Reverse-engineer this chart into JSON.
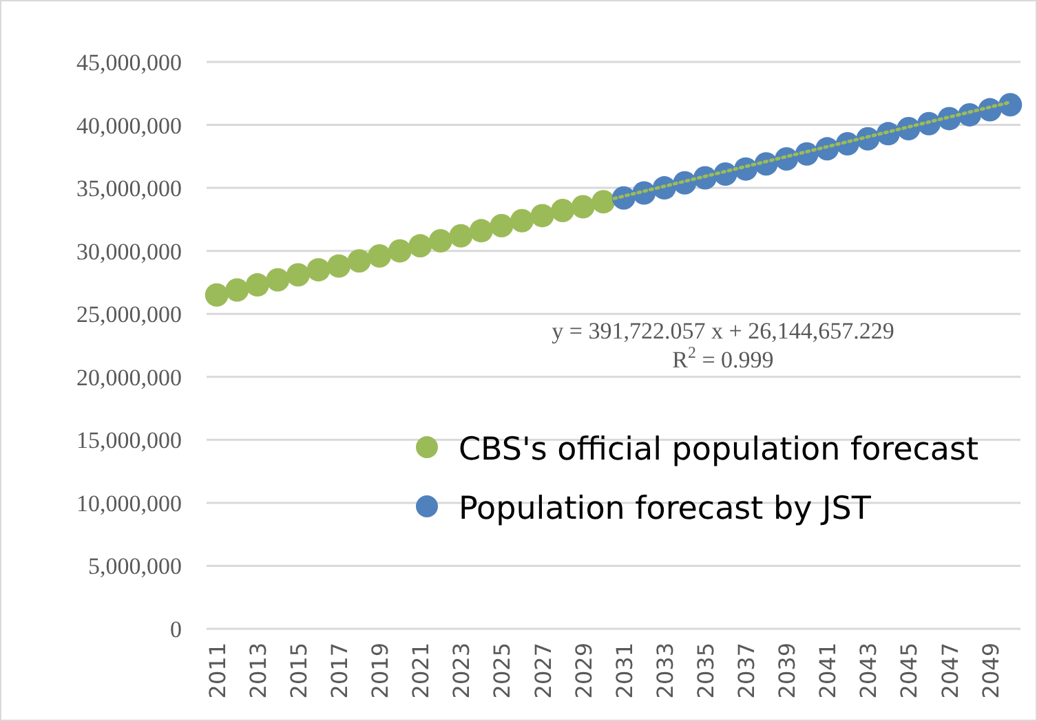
{
  "chart_data": {
    "type": "scatter",
    "categories": [
      "2011",
      null,
      "2013",
      null,
      "2015",
      null,
      "2017",
      null,
      "2019",
      null,
      "2021",
      null,
      "2023",
      null,
      "2025",
      null,
      "2027",
      null,
      "2029",
      null,
      "2031",
      null,
      "2033",
      null,
      "2035",
      null,
      "2037",
      null,
      "2039",
      null,
      "2041",
      null,
      "2043",
      null,
      "2045",
      null,
      "2047",
      null,
      "2049",
      null
    ],
    "series": [
      {
        "name": "CBS's official population forecast",
        "color": "#9bbb59",
        "values": [
          26500000,
          26900000,
          27300000,
          27700000,
          28100000,
          28500000,
          28800000,
          29200000,
          29600000,
          30000000,
          30400000,
          30800000,
          31200000,
          31600000,
          32000000,
          32400000,
          32800000,
          33200000,
          33500000,
          33900000,
          null,
          null,
          null,
          null,
          null,
          null,
          null,
          null,
          null,
          null,
          null,
          null,
          null,
          null,
          null,
          null,
          null,
          null,
          null,
          null
        ]
      },
      {
        "name": "Population forecast by JST",
        "color": "#4f81bd",
        "values": [
          null,
          null,
          null,
          null,
          null,
          null,
          null,
          null,
          null,
          null,
          null,
          null,
          null,
          null,
          null,
          null,
          null,
          null,
          null,
          null,
          34200000,
          34600000,
          35000000,
          35400000,
          35800000,
          36100000,
          36500000,
          36900000,
          37300000,
          37700000,
          38100000,
          38500000,
          38900000,
          39300000,
          39700000,
          40100000,
          40500000,
          40800000,
          41200000,
          41600000
        ]
      },
      {
        "type": "line",
        "color": "#9bbb59",
        "line_style": "dotted",
        "marker": "none",
        "values": [
          26500000,
          null,
          null,
          null,
          null,
          null,
          null,
          null,
          null,
          null,
          null,
          null,
          null,
          null,
          null,
          null,
          null,
          null,
          null,
          null,
          null,
          null,
          null,
          null,
          null,
          null,
          null,
          null,
          null,
          null,
          null,
          null,
          null,
          null,
          null,
          null,
          null,
          null,
          null,
          41800000
        ]
      }
    ],
    "ylim": [
      0,
      45000000
    ],
    "yticks": [
      {
        "value": 0,
        "label": "0"
      },
      {
        "value": 5000000,
        "label": "5,000,000"
      },
      {
        "value": 10000000,
        "label": "10,000,000"
      },
      {
        "value": 15000000,
        "label": "15,000,000"
      },
      {
        "value": 20000000,
        "label": "20,000,000"
      },
      {
        "value": 25000000,
        "label": "25,000,000"
      },
      {
        "value": 30000000,
        "label": "30,000,000"
      },
      {
        "value": 35000000,
        "label": "35,000,000"
      },
      {
        "value": 40000000,
        "label": "40,000,000"
      },
      {
        "value": 45000000,
        "label": "45,000,000"
      }
    ],
    "grid": "y",
    "marker": "circle",
    "legend": "bottom right",
    "annotations": [
      "y = 391,722.057 x + 26,144,657.229",
      "R$^{2}$ = 0.999"
    ]
  }
}
